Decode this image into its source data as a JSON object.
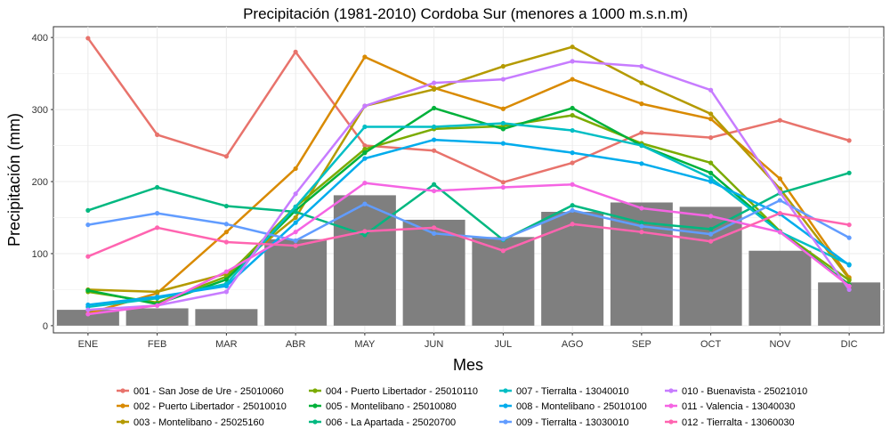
{
  "chart_data": {
    "type": "line",
    "title": "Precipitación (1981-2010) Cordoba Sur (menores a 1000 m.s.n.m)",
    "xlabel": "Mes",
    "ylabel": "Precipitación (mm)",
    "categories": [
      "ENE",
      "FEB",
      "MAR",
      "ABR",
      "MAY",
      "JUN",
      "JUL",
      "AGO",
      "SEP",
      "OCT",
      "NOV",
      "DIC"
    ],
    "ylim": [
      -10,
      415
    ],
    "yticks": [
      0,
      100,
      200,
      300,
      400
    ],
    "grid": true,
    "legend_position": "bottom",
    "bars": {
      "color": "#7f7f7f",
      "values": [
        22,
        24,
        23,
        120,
        181,
        147,
        123,
        158,
        171,
        165,
        104,
        60
      ]
    },
    "series": [
      {
        "name": "001 - San Jose de Ure - 25010060",
        "color": "#e8736c",
        "values": [
          399,
          265,
          235,
          380,
          250,
          243,
          199,
          226,
          268,
          261,
          285,
          257
        ]
      },
      {
        "name": "002 - Puerto Libertador - 25010010",
        "color": "#d98a00",
        "values": [
          17,
          45,
          130,
          218,
          373,
          330,
          301,
          342,
          308,
          287,
          204,
          67
        ]
      },
      {
        "name": "003 - Montelibano - 25025160",
        "color": "#b49a00",
        "values": [
          50,
          47,
          72,
          150,
          305,
          328,
          360,
          387,
          337,
          294,
          190,
          65
        ]
      },
      {
        "name": "004 - Puerto Libertador - 25010110",
        "color": "#7bab00",
        "values": [
          47,
          32,
          68,
          165,
          245,
          273,
          277,
          292,
          253,
          226,
          131,
          63
        ]
      },
      {
        "name": "005 - Montelibano - 25010080",
        "color": "#00b13a",
        "values": [
          49,
          30,
          64,
          160,
          240,
          302,
          273,
          302,
          250,
          212,
          130,
          57
        ]
      },
      {
        "name": "006 - La Apartada - 25020700",
        "color": "#00b880",
        "values": [
          160,
          192,
          166,
          158,
          126,
          196,
          119,
          167,
          143,
          134,
          184,
          212
        ]
      },
      {
        "name": "007 - Tierralta - 13040010",
        "color": "#00bec4",
        "values": [
          26,
          38,
          58,
          165,
          276,
          276,
          281,
          271,
          250,
          205,
          130,
          85
        ]
      },
      {
        "name": "008 - Montelibano - 25010100",
        "color": "#00acec",
        "values": [
          29,
          40,
          55,
          143,
          232,
          258,
          253,
          240,
          225,
          200,
          155,
          84
        ]
      },
      {
        "name": "009 - Tierralta - 13030010",
        "color": "#619cff",
        "values": [
          140,
          156,
          141,
          118,
          169,
          128,
          120,
          160,
          138,
          127,
          174,
          122
        ]
      },
      {
        "name": "010 - Buenavista - 25021010",
        "color": "#c77cff",
        "values": [
          22,
          28,
          47,
          183,
          305,
          337,
          342,
          367,
          360,
          327,
          185,
          50
        ]
      },
      {
        "name": "011 - Valencia - 13040030",
        "color": "#f564e3",
        "values": [
          16,
          28,
          75,
          130,
          198,
          187,
          192,
          196,
          163,
          152,
          130,
          55
        ]
      },
      {
        "name": "012 - Tierralta - 13060030",
        "color": "#ff64b0",
        "values": [
          96,
          136,
          116,
          111,
          131,
          136,
          104,
          141,
          130,
          117,
          156,
          140
        ]
      }
    ]
  }
}
